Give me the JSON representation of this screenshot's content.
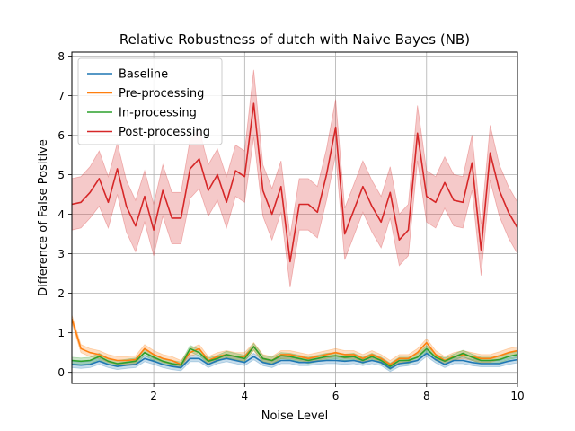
{
  "chart_data": {
    "type": "line",
    "title": "Relative Robustness of dutch with Naive Bayes (NB)",
    "xlabel": "Noise Level",
    "ylabel": "Difference of False Positive",
    "xlim": [
      0.2,
      10
    ],
    "ylim": [
      -0.28,
      8.1
    ],
    "xticks": [
      2,
      4,
      6,
      8,
      10
    ],
    "yticks": [
      0,
      1,
      2,
      3,
      4,
      5,
      6,
      7,
      8
    ],
    "grid": true,
    "legend_position": "top-left",
    "x": [
      0.2,
      0.4,
      0.6,
      0.8,
      1.0,
      1.2,
      1.4,
      1.6,
      1.8,
      2.0,
      2.2,
      2.4,
      2.6,
      2.8,
      3.0,
      3.2,
      3.4,
      3.6,
      3.8,
      4.0,
      4.2,
      4.4,
      4.6,
      4.8,
      5.0,
      5.2,
      5.4,
      5.6,
      5.8,
      6.0,
      6.2,
      6.4,
      6.6,
      6.8,
      7.0,
      7.2,
      7.4,
      7.6,
      7.8,
      8.0,
      8.2,
      8.4,
      8.6,
      8.8,
      9.0,
      9.2,
      9.4,
      9.6,
      9.8,
      10.0
    ],
    "series": [
      {
        "name": "Baseline",
        "color": "#1f77b4",
        "values": [
          0.2,
          0.18,
          0.2,
          0.28,
          0.2,
          0.15,
          0.18,
          0.2,
          0.35,
          0.28,
          0.2,
          0.15,
          0.12,
          0.35,
          0.35,
          0.2,
          0.3,
          0.35,
          0.3,
          0.25,
          0.4,
          0.25,
          0.2,
          0.3,
          0.3,
          0.25,
          0.25,
          0.28,
          0.3,
          0.3,
          0.28,
          0.3,
          0.25,
          0.3,
          0.25,
          0.1,
          0.22,
          0.25,
          0.3,
          0.48,
          0.32,
          0.2,
          0.3,
          0.3,
          0.25,
          0.22,
          0.22,
          0.22,
          0.28,
          0.32
        ],
        "band": [
          0.08,
          0.08,
          0.08,
          0.08,
          0.08,
          0.08,
          0.08,
          0.08,
          0.08,
          0.08,
          0.08,
          0.08,
          0.08,
          0.08,
          0.08,
          0.08,
          0.08,
          0.08,
          0.08,
          0.08,
          0.08,
          0.08,
          0.08,
          0.08,
          0.08,
          0.08,
          0.08,
          0.08,
          0.08,
          0.08,
          0.08,
          0.08,
          0.08,
          0.08,
          0.08,
          0.08,
          0.08,
          0.08,
          0.08,
          0.08,
          0.08,
          0.08,
          0.08,
          0.08,
          0.08,
          0.08,
          0.08,
          0.08,
          0.08,
          0.08
        ]
      },
      {
        "name": "Pre-processing",
        "color": "#ff7f0e",
        "values": [
          1.35,
          0.6,
          0.5,
          0.45,
          0.35,
          0.3,
          0.3,
          0.32,
          0.6,
          0.45,
          0.35,
          0.3,
          0.2,
          0.5,
          0.6,
          0.3,
          0.4,
          0.45,
          0.4,
          0.4,
          0.65,
          0.35,
          0.3,
          0.45,
          0.45,
          0.4,
          0.35,
          0.4,
          0.45,
          0.5,
          0.45,
          0.45,
          0.35,
          0.45,
          0.35,
          0.2,
          0.35,
          0.35,
          0.5,
          0.75,
          0.45,
          0.3,
          0.4,
          0.45,
          0.4,
          0.35,
          0.35,
          0.42,
          0.5,
          0.55
        ],
        "band": [
          0.1,
          0.1,
          0.1,
          0.1,
          0.1,
          0.1,
          0.1,
          0.1,
          0.1,
          0.1,
          0.1,
          0.1,
          0.1,
          0.1,
          0.1,
          0.1,
          0.1,
          0.1,
          0.1,
          0.1,
          0.1,
          0.1,
          0.1,
          0.1,
          0.1,
          0.1,
          0.1,
          0.1,
          0.1,
          0.1,
          0.1,
          0.1,
          0.1,
          0.1,
          0.1,
          0.1,
          0.1,
          0.1,
          0.1,
          0.1,
          0.1,
          0.1,
          0.1,
          0.1,
          0.1,
          0.1,
          0.1,
          0.1,
          0.1,
          0.1
        ]
      },
      {
        "name": "In-processing",
        "color": "#2ca02c",
        "values": [
          0.3,
          0.28,
          0.3,
          0.4,
          0.28,
          0.22,
          0.25,
          0.28,
          0.5,
          0.38,
          0.28,
          0.22,
          0.18,
          0.6,
          0.5,
          0.28,
          0.35,
          0.45,
          0.4,
          0.35,
          0.65,
          0.35,
          0.3,
          0.42,
          0.4,
          0.35,
          0.3,
          0.35,
          0.4,
          0.42,
          0.38,
          0.4,
          0.3,
          0.4,
          0.3,
          0.15,
          0.3,
          0.3,
          0.38,
          0.6,
          0.38,
          0.28,
          0.38,
          0.48,
          0.38,
          0.3,
          0.3,
          0.32,
          0.4,
          0.45
        ],
        "band": [
          0.08,
          0.08,
          0.08,
          0.08,
          0.08,
          0.08,
          0.08,
          0.08,
          0.08,
          0.08,
          0.08,
          0.08,
          0.08,
          0.08,
          0.08,
          0.08,
          0.08,
          0.08,
          0.08,
          0.08,
          0.08,
          0.08,
          0.08,
          0.08,
          0.08,
          0.08,
          0.08,
          0.08,
          0.08,
          0.08,
          0.08,
          0.08,
          0.08,
          0.08,
          0.08,
          0.08,
          0.08,
          0.08,
          0.08,
          0.08,
          0.08,
          0.08,
          0.08,
          0.08,
          0.08,
          0.08,
          0.08,
          0.08,
          0.08,
          0.08
        ]
      },
      {
        "name": "Post-processing",
        "color": "#d62728",
        "values": [
          4.25,
          4.3,
          4.55,
          4.9,
          4.3,
          5.15,
          4.2,
          3.7,
          4.45,
          3.6,
          4.6,
          3.9,
          3.9,
          5.15,
          5.4,
          4.6,
          5.0,
          4.3,
          5.1,
          4.95,
          6.8,
          4.6,
          4.0,
          4.7,
          2.8,
          4.25,
          4.25,
          4.05,
          5.0,
          6.2,
          3.5,
          4.1,
          4.7,
          4.2,
          3.8,
          4.55,
          3.35,
          3.6,
          6.05,
          4.45,
          4.3,
          4.8,
          4.35,
          4.3,
          5.3,
          3.1,
          5.55,
          4.6,
          4.05,
          3.65
        ],
        "band": [
          0.65,
          0.65,
          0.65,
          0.7,
          0.65,
          0.65,
          0.65,
          0.65,
          0.65,
          0.65,
          0.65,
          0.65,
          0.65,
          0.75,
          0.75,
          0.65,
          0.65,
          0.65,
          0.65,
          0.65,
          0.85,
          0.65,
          0.65,
          0.65,
          0.65,
          0.65,
          0.65,
          0.65,
          0.65,
          0.7,
          0.65,
          0.65,
          0.65,
          0.65,
          0.65,
          0.65,
          0.65,
          0.65,
          0.7,
          0.65,
          0.65,
          0.65,
          0.65,
          0.65,
          0.7,
          0.65,
          0.7,
          0.65,
          0.65,
          0.65
        ]
      }
    ]
  }
}
